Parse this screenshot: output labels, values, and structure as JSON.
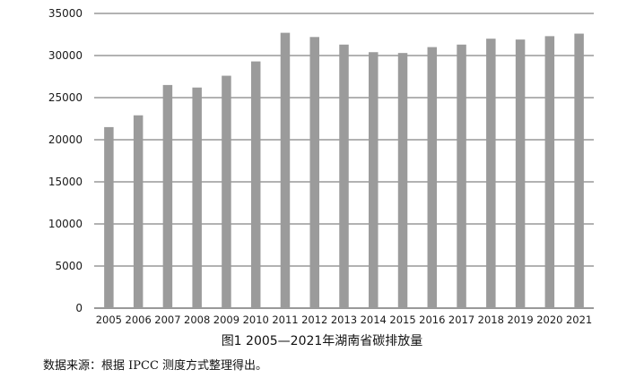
{
  "caption": "图1 2005—2021年湖南省碳排放量",
  "source_note": "数据来源：根据 IPCC 测度方式整理得出。",
  "colors": {
    "bar": "#9b9b9b",
    "gridline": "#333333",
    "text": "#1a1a1a"
  },
  "chart_data": {
    "type": "bar",
    "title": "图1 2005—2021年湖南省碳排放量",
    "xlabel": "",
    "ylabel": "",
    "ylim": [
      0,
      35000
    ],
    "yticks": [
      0,
      5000,
      10000,
      15000,
      20000,
      25000,
      30000,
      35000
    ],
    "grid": true,
    "categories": [
      "2005",
      "2006",
      "2007",
      "2008",
      "2009",
      "2010",
      "2011",
      "2012",
      "2013",
      "2014",
      "2015",
      "2016",
      "2017",
      "2018",
      "2019",
      "2020",
      "2021"
    ],
    "values": [
      21500,
      22900,
      26500,
      26200,
      27600,
      29300,
      32700,
      32200,
      31300,
      30400,
      30300,
      31000,
      31300,
      32000,
      31900,
      32300,
      32600
    ]
  }
}
